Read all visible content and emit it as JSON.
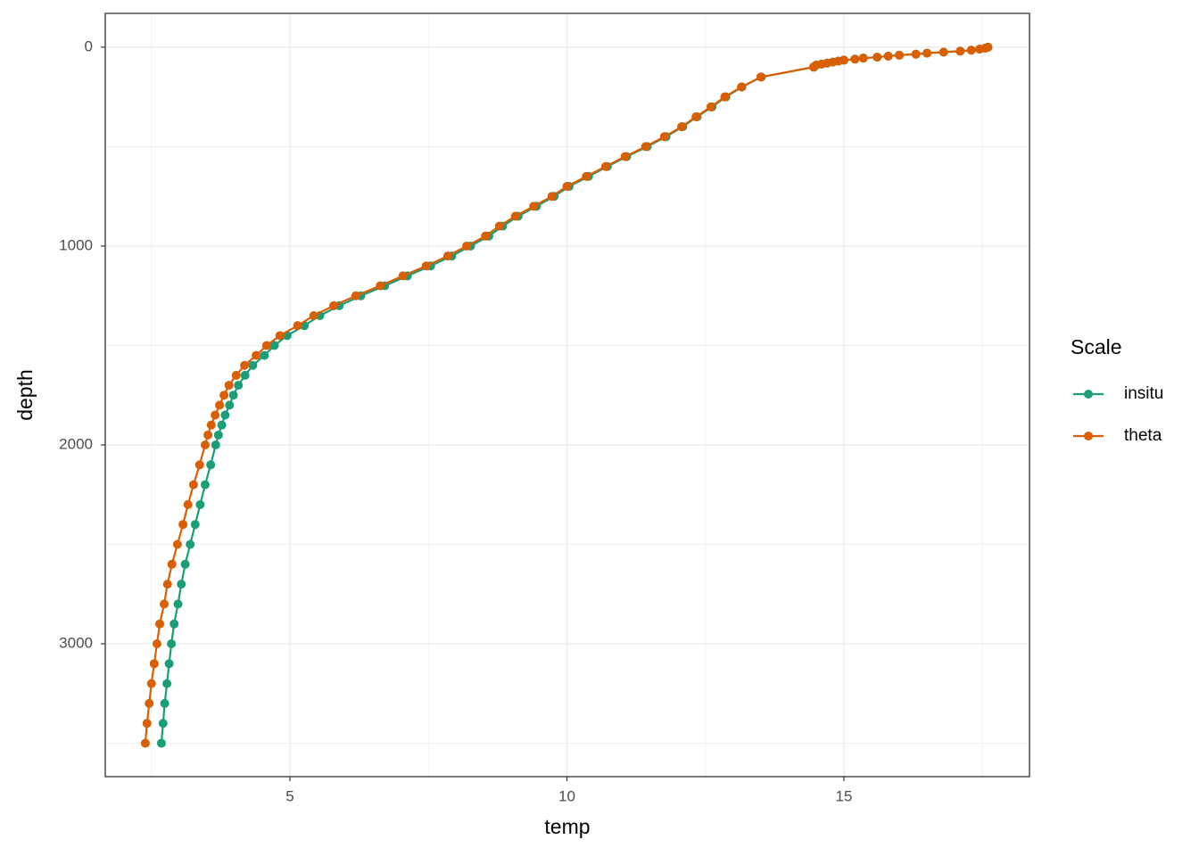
{
  "chart_data": {
    "type": "line",
    "x_label": "temp",
    "y_label": "depth",
    "legend_title": "Scale",
    "legend": "right",
    "xlim": [
      1.667,
      18.35
    ],
    "xticks": [
      5,
      10,
      15
    ],
    "ylim": [
      -170,
      3668
    ],
    "yticks": [
      0,
      1000,
      2000,
      3000
    ],
    "y_reversed": true,
    "grid": true,
    "series": [
      {
        "name": "insitu",
        "color": "#1b9e77",
        "x": [
          17.6,
          17.55,
          17.45,
          17.3,
          17.1,
          16.8,
          16.5,
          16.3,
          16.0,
          15.8,
          15.6,
          15.35,
          15.2,
          15.0,
          14.9,
          14.8,
          14.7,
          14.6,
          14.5,
          14.46,
          13.51,
          13.16,
          12.87,
          12.62,
          12.35,
          12.09,
          11.79,
          11.45,
          11.08,
          10.73,
          10.39,
          10.04,
          9.77,
          9.45,
          9.12,
          8.84,
          8.59,
          8.26,
          7.92,
          7.54,
          7.12,
          6.71,
          6.28,
          5.89,
          5.54,
          5.26,
          4.95,
          4.72,
          4.54,
          4.33,
          4.19,
          4.07,
          3.98,
          3.91,
          3.83,
          3.77,
          3.71,
          3.66,
          3.57,
          3.47,
          3.38,
          3.29,
          3.2,
          3.11,
          3.04,
          2.98,
          2.91,
          2.86,
          2.82,
          2.78,
          2.74,
          2.71,
          2.68
        ],
        "y": [
          0,
          5,
          10,
          15,
          20,
          25,
          30,
          35,
          40,
          45,
          50,
          55,
          60,
          65,
          70,
          75,
          80,
          85,
          90,
          100,
          150,
          200,
          250,
          300,
          350,
          400,
          450,
          500,
          550,
          600,
          650,
          700,
          750,
          800,
          850,
          900,
          950,
          1000,
          1050,
          1100,
          1150,
          1200,
          1250,
          1300,
          1350,
          1400,
          1450,
          1500,
          1550,
          1600,
          1650,
          1700,
          1750,
          1800,
          1850,
          1900,
          1950,
          2000,
          2100,
          2200,
          2300,
          2400,
          2500,
          2600,
          2700,
          2800,
          2900,
          3000,
          3100,
          3200,
          3300,
          3400,
          3500
        ]
      },
      {
        "name": "theta",
        "color": "#d95f02",
        "x": [
          17.6,
          17.55,
          17.45,
          17.3,
          17.1,
          16.8,
          16.5,
          16.3,
          16.0,
          15.8,
          15.6,
          15.35,
          15.2,
          15.0,
          14.9,
          14.8,
          14.7,
          14.6,
          14.5,
          14.45,
          13.5,
          13.15,
          12.85,
          12.6,
          12.33,
          12.07,
          11.76,
          11.42,
          11.05,
          10.7,
          10.35,
          10.0,
          9.73,
          9.4,
          9.07,
          8.78,
          8.53,
          8.19,
          7.85,
          7.46,
          7.04,
          6.63,
          6.19,
          5.79,
          5.43,
          5.14,
          4.82,
          4.58,
          4.39,
          4.18,
          4.03,
          3.9,
          3.81,
          3.73,
          3.65,
          3.58,
          3.52,
          3.47,
          3.37,
          3.26,
          3.16,
          3.07,
          2.97,
          2.87,
          2.79,
          2.73,
          2.65,
          2.6,
          2.55,
          2.5,
          2.46,
          2.42,
          2.39
        ],
        "y": [
          0,
          5,
          10,
          15,
          20,
          25,
          30,
          35,
          40,
          45,
          50,
          55,
          60,
          65,
          70,
          75,
          80,
          85,
          90,
          100,
          150,
          200,
          250,
          300,
          350,
          400,
          450,
          500,
          550,
          600,
          650,
          700,
          750,
          800,
          850,
          900,
          950,
          1000,
          1050,
          1100,
          1150,
          1200,
          1250,
          1300,
          1350,
          1400,
          1450,
          1500,
          1550,
          1600,
          1650,
          1700,
          1750,
          1800,
          1850,
          1900,
          1950,
          2000,
          2100,
          2200,
          2300,
          2400,
          2500,
          2600,
          2700,
          2800,
          2900,
          3000,
          3100,
          3200,
          3300,
          3400,
          3500
        ]
      }
    ]
  }
}
